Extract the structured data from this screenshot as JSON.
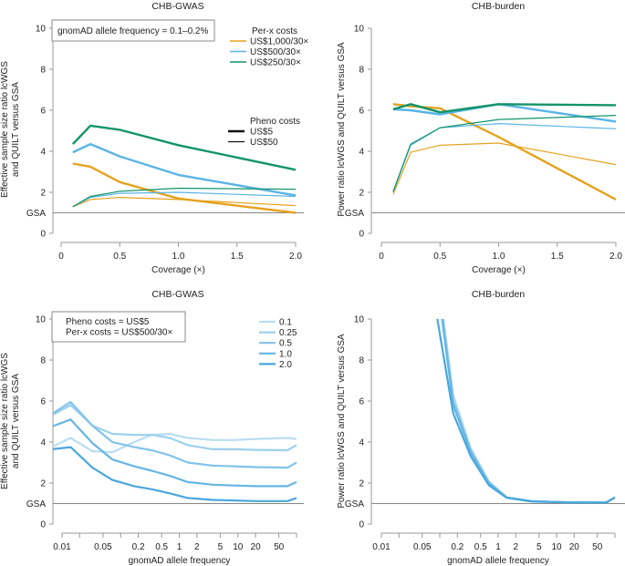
{
  "colors": {
    "orange": "#e6a21f",
    "blue": "#5ab4e5",
    "green": "#13946a",
    "axis": "#999999",
    "gsa_line": "#888888",
    "freq_shades": [
      "#b9ddf2",
      "#9dd0ee",
      "#82c3ea",
      "#66b5e4",
      "#4aa7dd"
    ]
  },
  "chart_data": [
    {
      "type": "line",
      "title": "CHB-GWAS",
      "xlabel": "Coverage (×)",
      "ylabel": [
        "Effective sample size ratio lcWGS",
        "and QUILT versus GSA"
      ],
      "xlim": [
        0,
        2.0
      ],
      "ylim": [
        0,
        10
      ],
      "x_ticks": [
        "0",
        "0.5",
        "1.0",
        "1.5",
        "2.0"
      ],
      "x_tick_values": [
        0,
        0.5,
        1.0,
        1.5,
        2.0
      ],
      "y_ticks": [
        "0",
        "2",
        "4",
        "6",
        "8",
        "10"
      ],
      "reference_line": {
        "label": "GSA",
        "y": 1
      },
      "annotation": "gnomAD allele frequency = 0.1–0.2%",
      "legend_cost_title": "Per-x costs",
      "legend_pheno_title": "Pheno costs",
      "legend_pheno": [
        {
          "name": "US$5",
          "thick": true
        },
        {
          "name": "US$50",
          "thick": false
        }
      ],
      "x": [
        0.1,
        0.25,
        0.5,
        1.0,
        2.0
      ],
      "series": [
        {
          "name": "US$1,000/30×",
          "color": "orange",
          "pheno": "US$5",
          "values": [
            3.4,
            3.25,
            2.5,
            1.7,
            1.0
          ]
        },
        {
          "name": "US$500/30×",
          "color": "blue",
          "pheno": "US$5",
          "values": [
            3.95,
            4.35,
            3.75,
            2.85,
            1.85
          ]
        },
        {
          "name": "US$250/30×",
          "color": "green",
          "pheno": "US$5",
          "values": [
            4.35,
            5.25,
            5.05,
            4.3,
            3.1
          ]
        },
        {
          "name": "US$1,000/30×",
          "color": "orange",
          "pheno": "US$50",
          "values": [
            1.3,
            1.65,
            1.75,
            1.65,
            1.35
          ]
        },
        {
          "name": "US$500/30×",
          "color": "blue",
          "pheno": "US$50",
          "values": [
            1.3,
            1.75,
            1.95,
            2.0,
            1.8
          ]
        },
        {
          "name": "US$250/30×",
          "color": "green",
          "pheno": "US$50",
          "values": [
            1.3,
            1.8,
            2.05,
            2.2,
            2.15
          ]
        }
      ]
    },
    {
      "type": "line",
      "title": "CHB-burden",
      "xlabel": "Coverage (×)",
      "ylabel": [
        "Power ratio lcWGS and QUILT versus GSA"
      ],
      "xlim": [
        0,
        2.0
      ],
      "ylim": [
        0,
        10
      ],
      "x_ticks": [
        "0",
        "0.5",
        "1.0",
        "1.5",
        "2.0"
      ],
      "x_tick_values": [
        0,
        0.5,
        1.0,
        1.5,
        2.0
      ],
      "y_ticks": [
        "0",
        "2",
        "4",
        "6",
        "8",
        "10"
      ],
      "reference_line": {
        "label": "GSA",
        "y": 1
      },
      "x": [
        0.1,
        0.25,
        0.5,
        1.0,
        2.0
      ],
      "series": [
        {
          "name": "US$1,000/30×",
          "color": "orange",
          "pheno": "US$5",
          "values": [
            6.3,
            6.2,
            6.1,
            4.7,
            1.65
          ]
        },
        {
          "name": "US$500/30×",
          "color": "blue",
          "pheno": "US$5",
          "values": [
            6.05,
            6.0,
            5.8,
            6.3,
            5.45
          ]
        },
        {
          "name": "US$250/30×",
          "color": "green",
          "pheno": "US$5",
          "values": [
            6.05,
            6.3,
            5.9,
            6.3,
            6.25
          ]
        },
        {
          "name": "US$1,000/30×",
          "color": "orange",
          "pheno": "US$50",
          "values": [
            1.9,
            3.95,
            4.3,
            4.4,
            3.35
          ]
        },
        {
          "name": "US$500/30×",
          "color": "blue",
          "pheno": "US$50",
          "values": [
            2.0,
            4.3,
            5.15,
            5.35,
            5.1
          ]
        },
        {
          "name": "US$250/30×",
          "color": "green",
          "pheno": "US$50",
          "values": [
            2.05,
            4.35,
            5.15,
            5.55,
            5.75
          ]
        }
      ]
    },
    {
      "type": "line",
      "title": "CHB-GWAS",
      "xlabel": "gnomAD allele frequency",
      "ylabel": [
        "Effective sample size ratio lcWGS",
        "and QUILT versus GSA"
      ],
      "x_scale": "log",
      "xlim": [
        0.01,
        100
      ],
      "ylim": [
        0,
        10
      ],
      "x_tick_values": [
        0.01,
        0.02,
        0.05,
        0.1,
        0.2,
        0.5,
        1,
        2,
        5,
        10,
        20,
        50,
        100
      ],
      "x_ticks": [
        "0.01",
        "",
        "0.05",
        "",
        "0.2",
        "0.5",
        "1",
        "2",
        "5",
        "10",
        "20",
        "50",
        ""
      ],
      "y_ticks": [
        "0",
        "2",
        "4",
        "6",
        "8",
        "10"
      ],
      "reference_line": {
        "label": "GSA",
        "y": 1
      },
      "annotation": [
        "Pheno costs = US$5",
        "Per-x costs = US$500/30×"
      ],
      "x": [
        0.0066,
        0.014,
        0.033,
        0.072,
        0.17,
        0.34,
        0.69,
        1.4,
        3.7,
        8.6,
        20,
        70,
        100
      ],
      "series": [
        {
          "name": "0.1",
          "values": [
            3.75,
            4.2,
            3.55,
            3.5,
            4.0,
            4.35,
            4.4,
            4.2,
            4.1,
            4.1,
            4.15,
            4.2,
            4.15
          ]
        },
        {
          "name": "0.25",
          "values": [
            5.3,
            5.8,
            4.8,
            4.4,
            4.35,
            4.35,
            4.2,
            3.85,
            3.65,
            3.65,
            3.62,
            3.6,
            3.85
          ]
        },
        {
          "name": "0.5",
          "values": [
            5.35,
            5.95,
            4.8,
            4.0,
            3.75,
            3.6,
            3.35,
            3.0,
            2.85,
            2.82,
            2.78,
            2.75,
            3.0
          ]
        },
        {
          "name": "1.0",
          "values": [
            4.75,
            5.1,
            3.95,
            3.15,
            2.82,
            2.6,
            2.35,
            2.05,
            1.92,
            1.88,
            1.85,
            1.85,
            2.05
          ]
        },
        {
          "name": "2.0",
          "values": [
            3.65,
            3.75,
            2.75,
            2.15,
            1.85,
            1.7,
            1.5,
            1.27,
            1.18,
            1.15,
            1.12,
            1.12,
            1.27
          ]
        }
      ]
    },
    {
      "type": "line",
      "title": "CHB-burden",
      "xlabel": "gnomAD allele frequency",
      "ylabel": [
        "Power ratio lcWGS and QUILT versus GSA"
      ],
      "x_scale": "log",
      "xlim": [
        0.01,
        100
      ],
      "ylim": [
        0,
        10
      ],
      "x_tick_values": [
        0.01,
        0.02,
        0.05,
        0.1,
        0.2,
        0.5,
        1,
        2,
        5,
        10,
        20,
        50,
        100
      ],
      "x_ticks": [
        "0.01",
        "",
        "0.05",
        "",
        "0.2",
        "0.5",
        "1",
        "2",
        "5",
        "10",
        "20",
        "50",
        ""
      ],
      "y_ticks": [
        "0",
        "2",
        "4",
        "6",
        "8",
        "10"
      ],
      "reference_line": {
        "label": "GSA",
        "y": 1
      },
      "x": [
        0.0066,
        0.014,
        0.033,
        0.072,
        0.17,
        0.34,
        0.69,
        1.4,
        3.7,
        8.6,
        20,
        70,
        100
      ],
      "series": [
        {
          "name": "0.1",
          "values": [
            null,
            null,
            null,
            14.6,
            6.3,
            3.7,
            2.1,
            1.3,
            1.12,
            1.08,
            1.05,
            1.05,
            1.3
          ]
        },
        {
          "name": "0.25",
          "values": [
            null,
            null,
            null,
            14.4,
            6.1,
            3.6,
            2.05,
            1.3,
            1.12,
            1.08,
            1.05,
            1.05,
            1.3
          ]
        },
        {
          "name": "0.5",
          "values": [
            null,
            null,
            null,
            14.2,
            6.0,
            3.55,
            2.0,
            1.3,
            1.12,
            1.08,
            1.05,
            1.05,
            1.3
          ]
        },
        {
          "name": "1.0",
          "values": [
            null,
            null,
            null,
            14.0,
            5.8,
            3.5,
            2.0,
            1.3,
            1.12,
            1.08,
            1.05,
            1.05,
            1.3
          ]
        },
        {
          "name": "2.0",
          "values": [
            null,
            null,
            null,
            11.7,
            5.4,
            3.3,
            1.9,
            1.28,
            1.1,
            1.07,
            1.05,
            1.05,
            1.3
          ]
        }
      ]
    }
  ]
}
